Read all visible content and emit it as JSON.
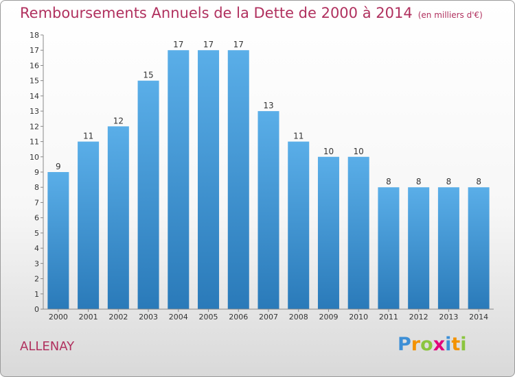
{
  "header": {
    "title": "Remboursements Annuels de la Dette de 2000 à 2014",
    "unit": "(en milliers d'€)"
  },
  "footer": {
    "commune": "ALLENAY",
    "brand": [
      "P",
      "r",
      "o",
      "x",
      "i",
      "t",
      "i"
    ],
    "brand_colors": [
      "#3d8fd6",
      "#f39200",
      "#8bc53f",
      "#e2007a",
      "#3d8fd6",
      "#f39200",
      "#8bc53f"
    ]
  },
  "chart_data": {
    "type": "bar",
    "title": "Remboursements Annuels de la Dette de 2000 à 2014",
    "xlabel": "",
    "ylabel": "",
    "categories": [
      "2000",
      "2001",
      "2002",
      "2003",
      "2004",
      "2005",
      "2006",
      "2007",
      "2008",
      "2009",
      "2010",
      "2011",
      "2012",
      "2013",
      "2014"
    ],
    "values": [
      9,
      11,
      12,
      15,
      17,
      17,
      17,
      13,
      11,
      10,
      10,
      8,
      8,
      8,
      8
    ],
    "data_labels": [
      "9",
      "11",
      "12",
      "15",
      "17",
      "17",
      "17",
      "13",
      "11",
      "10",
      "10",
      "8",
      "8",
      "8",
      "8"
    ],
    "ylim": [
      0,
      18
    ],
    "yticks": [
      "0",
      "1",
      "2",
      "3",
      "4",
      "5",
      "6",
      "7",
      "8",
      "9",
      "10",
      "11",
      "12",
      "13",
      "14",
      "15",
      "16",
      "17",
      "18"
    ],
    "grid": false,
    "bar_color_top": "#5aaee8",
    "bar_color_bottom": "#2a7ab9"
  }
}
